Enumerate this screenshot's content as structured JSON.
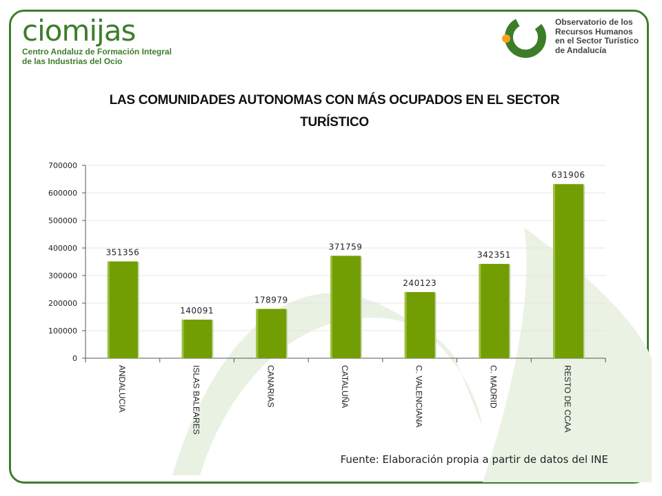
{
  "logo_left": {
    "word": "ciomijas",
    "line1": "Centro Andaluz de Formación Integral",
    "line2": "de las Industrias del Ocio"
  },
  "logo_right": {
    "text": "Observatorio de los\nRecursos Humanos\nen el Sector Turístico\nde Andalucía"
  },
  "colors": {
    "brand_green": "#3d7d2a",
    "bar": "#739e03",
    "accent_orange": "#f5a21e"
  },
  "chart_data": {
    "type": "bar",
    "title": "LAS COMUNIDADES AUTONOMAS CON MÁS OCUPADOS EN EL SECTOR TURÍSTICO",
    "xlabel": "",
    "ylabel": "",
    "categories": [
      "ANDALUCIA",
      "ISLAS BALEARES",
      "CANARIAS",
      "CATALUÑA",
      "C. VALENCIANA",
      "C. MADRID",
      "RESTO DE CCAA"
    ],
    "values": [
      351356,
      140091,
      178979,
      371759,
      240123,
      342351,
      631906
    ],
    "ylim": [
      0,
      700000
    ],
    "yticks": [
      0,
      100000,
      200000,
      300000,
      400000,
      500000,
      600000,
      700000
    ],
    "grid": true,
    "legend": "none"
  },
  "source": "Fuente: Elaboración propia a partir de datos del INE"
}
